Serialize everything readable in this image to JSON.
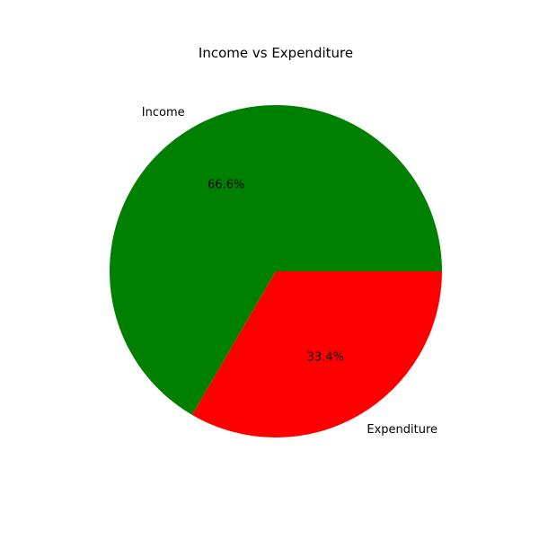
{
  "chart_data": {
    "type": "pie",
    "title": "Income vs Expenditure",
    "labels": [
      "Income",
      "Expenditure"
    ],
    "percentages": [
      66.6,
      33.4
    ],
    "percentage_labels": [
      "66.6%",
      "33.4%"
    ],
    "colors": [
      "#008000",
      "#ff0000"
    ],
    "start_angle_deg": 0,
    "direction": "counterclockwise"
  }
}
